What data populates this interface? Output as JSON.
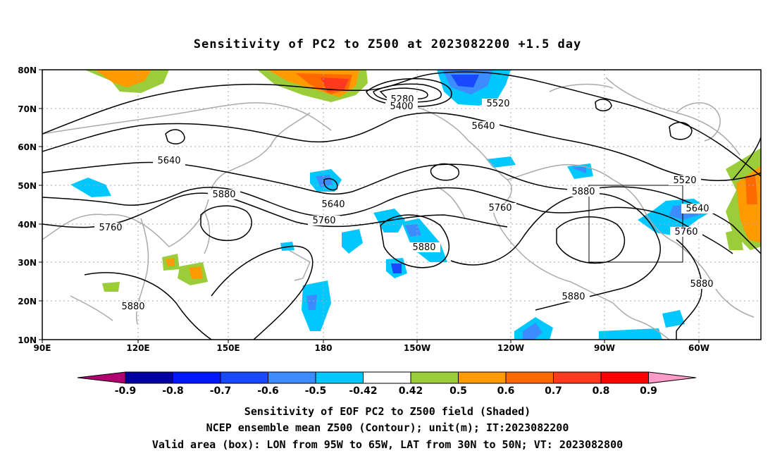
{
  "title": "Sensitivity of PC2 to Z500 at 2023082200 +1.5 day",
  "map": {
    "lon_ticks": [
      "90E",
      "120E",
      "150E",
      "180",
      "150W",
      "120W",
      "90W",
      "60W"
    ],
    "lat_ticks": [
      "80N",
      "70N",
      "60N",
      "50N",
      "40N",
      "30N",
      "20N",
      "10N"
    ],
    "contour_labels": [
      "5280",
      "5400",
      "5520",
      "5640",
      "5640",
      "5640",
      "5520",
      "5640",
      "5880",
      "5760",
      "5760",
      "5760",
      "5880",
      "5880",
      "5880",
      "5880",
      "5760",
      "5880",
      "5880"
    ],
    "valid_box": {
      "lon_min": -95,
      "lon_max": -65,
      "lat_min": 30,
      "lat_max": 50
    },
    "colors": {
      "coast": "#aaaaaa",
      "contour": "#000000",
      "grid": "#aaaaaa"
    }
  },
  "colorbar": {
    "labels": [
      "-0.9",
      "-0.8",
      "-0.7",
      "-0.6",
      "-0.5",
      "-0.42",
      "0.42",
      "0.5",
      "0.6",
      "0.7",
      "0.8",
      "0.9"
    ],
    "colors": [
      "#b0006f",
      "#0000a0",
      "#0018ff",
      "#1848ff",
      "#3c8cff",
      "#00c8ff",
      "#ffffff",
      "#9bcd3a",
      "#ff9a00",
      "#ff6a00",
      "#ff3a1e",
      "#ff0000",
      "#ff9bc8"
    ]
  },
  "captions": [
    "Sensitivity of EOF PC2 to Z500 field (Shaded)",
    "NCEP ensemble mean Z500 (Contour); unit(m); IT:2023082200",
    "Valid area (box): LON from 95W to 65W, LAT from 30N to 50N; VT: 2023082800"
  ]
}
